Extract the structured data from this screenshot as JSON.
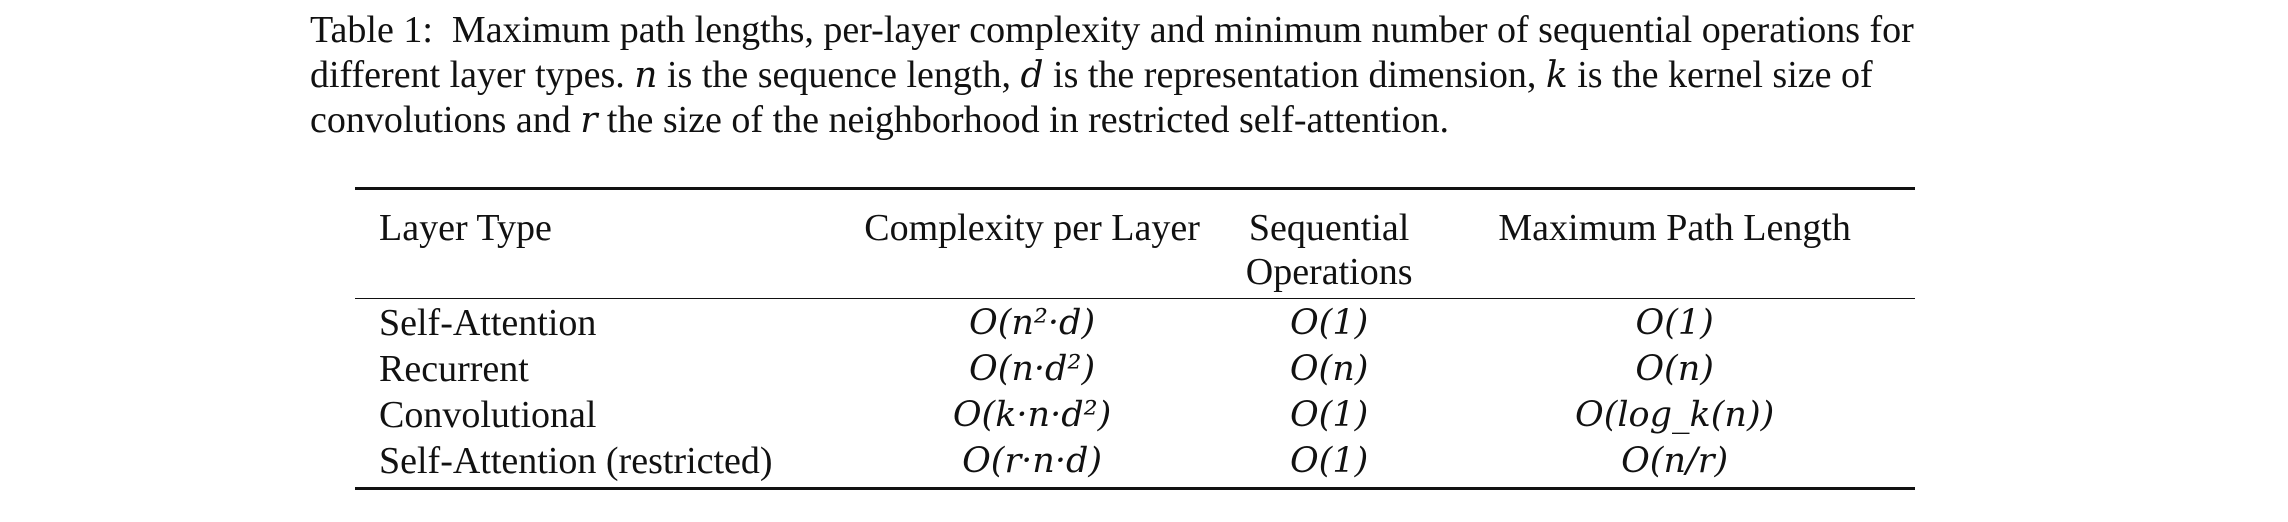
{
  "caption": {
    "label": "Table 1:",
    "text_1": "Maximum path lengths, per-layer complexity and minimum number of sequential operations for different layer types.",
    "var_n": "n",
    "text_2": "is the sequence length,",
    "var_d": "d",
    "text_3": "is the representation dimension,",
    "var_k": "k",
    "text_4": "is the kernel size of convolutions and",
    "var_r": "r",
    "text_5": "the size of the neighborhood in restricted self-attention."
  },
  "table": {
    "headers": [
      "Layer Type",
      "Complexity per Layer",
      "Sequential Operations",
      "Maximum Path Length"
    ],
    "rows": [
      [
        "Self-Attention",
        "O(n²·d)",
        "O(1)",
        "O(1)"
      ],
      [
        "Recurrent",
        "O(n·d²)",
        "O(n)",
        "O(n)"
      ],
      [
        "Convolutional",
        "O(k·n·d²)",
        "O(1)",
        "O(log_k(n))"
      ],
      [
        "Self-Attention (restricted)",
        "O(r·n·d)",
        "O(1)",
        "O(n/r)"
      ]
    ]
  }
}
